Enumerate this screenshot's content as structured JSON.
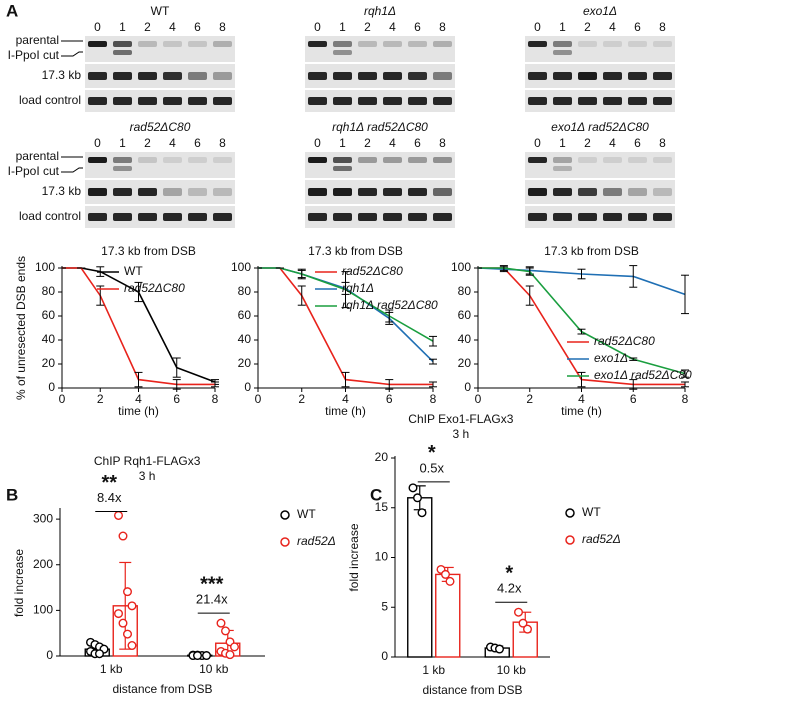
{
  "panel_labels": [
    "A",
    "B",
    "C"
  ],
  "gels": [
    {
      "title": "WT",
      "lanes": [
        "0",
        "1",
        "2",
        "4",
        "6",
        "8"
      ],
      "row_labels": [
        "parental",
        "I-PpoI cut",
        "17.3 kb",
        "load control"
      ]
    },
    {
      "title": "rqh1Δ",
      "lanes": [
        "0",
        "1",
        "2",
        "4",
        "6",
        "8"
      ]
    },
    {
      "title": "exo1Δ",
      "lanes": [
        "0",
        "1",
        "2",
        "4",
        "6",
        "8"
      ]
    },
    {
      "title": "rad52ΔC80",
      "lanes": [
        "0",
        "1",
        "2",
        "4",
        "6",
        "8"
      ],
      "row_labels": [
        "parental",
        "I-PpoI cut",
        "17.3 kb",
        "load control"
      ]
    },
    {
      "title": "rqh1Δ rad52ΔC80",
      "lanes": [
        "0",
        "1",
        "2",
        "4",
        "6",
        "8"
      ]
    },
    {
      "title": "exo1Δ rad52ΔC80",
      "lanes": [
        "0",
        "1",
        "2",
        "4",
        "6",
        "8"
      ]
    }
  ],
  "chart_data": [
    {
      "type": "line",
      "title": "17.3 kb from DSB",
      "x_label": "time (h)",
      "y_label": "% of unresected DSB ends",
      "x": [
        0,
        1,
        2,
        4,
        6,
        8
      ],
      "xlim": [
        0,
        8
      ],
      "xticks": [
        0,
        2,
        4,
        6,
        8
      ],
      "ylim": [
        0,
        100
      ],
      "yticks": [
        0,
        20,
        40,
        60,
        80,
        100
      ],
      "legend": "upper right",
      "series": [
        {
          "name": "WT",
          "color": "#000000",
          "values": [
            100,
            100,
            97,
            80,
            17,
            5
          ],
          "errors": [
            0,
            0,
            4,
            8,
            8,
            2
          ]
        },
        {
          "name": "rad52ΔC80",
          "color": "#e8231c",
          "values": [
            100,
            100,
            77,
            7,
            3,
            3
          ],
          "errors": [
            0,
            0,
            8,
            6,
            4,
            2
          ]
        }
      ]
    },
    {
      "type": "line",
      "title": "17.3 kb from DSB",
      "x_label": "time (h)",
      "x": [
        0,
        1,
        2,
        4,
        6,
        8
      ],
      "xlim": [
        0,
        8
      ],
      "xticks": [
        0,
        2,
        4,
        6,
        8
      ],
      "ylim": [
        0,
        100
      ],
      "yticks": [
        0,
        20,
        40,
        60,
        80,
        100
      ],
      "legend": "upper right",
      "series": [
        {
          "name": "rad52ΔC80",
          "color": "#e8231c",
          "values": [
            100,
            100,
            77,
            7,
            3,
            3
          ],
          "errors": [
            0,
            0,
            8,
            6,
            4,
            2
          ]
        },
        {
          "name": "rqh1Δ",
          "color": "#1f6fb4",
          "values": [
            100,
            100,
            95,
            83,
            58,
            22
          ],
          "errors": [
            0,
            0,
            3,
            5,
            5,
            2
          ]
        },
        {
          "name": "rqh1Δ rad52ΔC80",
          "color": "#1a9e3f",
          "values": [
            100,
            100,
            95,
            82,
            60,
            39
          ],
          "errors": [
            0,
            0,
            4,
            15,
            5,
            4
          ]
        }
      ]
    },
    {
      "type": "line",
      "title": "17.3 kb from DSB",
      "x_label": "time (h)",
      "x": [
        0,
        1,
        2,
        4,
        6,
        8
      ],
      "xlim": [
        0,
        8
      ],
      "xticks": [
        0,
        2,
        4,
        6,
        8
      ],
      "ylim": [
        0,
        100
      ],
      "yticks": [
        0,
        20,
        40,
        60,
        80,
        100
      ],
      "legend": "lower right",
      "series": [
        {
          "name": "rad52ΔC80",
          "color": "#e8231c",
          "values": [
            100,
            100,
            77,
            7,
            3,
            3
          ],
          "errors": [
            0,
            0,
            8,
            6,
            4,
            2
          ]
        },
        {
          "name": "exo1Δ",
          "color": "#1f6fb4",
          "values": [
            100,
            99,
            98,
            95,
            93,
            78
          ],
          "errors": [
            0,
            2,
            3,
            4,
            9,
            16
          ]
        },
        {
          "name": "exo1Δ rad52ΔC80",
          "color": "#1a9e3f",
          "values": [
            100,
            100,
            97,
            47,
            24,
            12
          ],
          "errors": [
            0,
            2,
            3,
            2,
            1,
            3
          ]
        }
      ]
    },
    {
      "type": "bar",
      "title": "ChIP Rqh1-FLAGx3",
      "subtitle": "3 h",
      "x_label": "distance from DSB",
      "y_label": "fold increase",
      "categories": [
        "1 kb",
        "10 kb"
      ],
      "ylim": [
        0,
        320
      ],
      "yticks": [
        0,
        100,
        200,
        300
      ],
      "series": [
        {
          "name": "WT",
          "color": "#000000",
          "values": [
            15,
            1.5
          ],
          "errors": [
            10,
            1
          ],
          "points": [
            [
              30,
              25,
              20,
              15,
              10,
              5,
              5
            ],
            [
              2,
              2,
              1,
              1,
              1,
              1
            ]
          ]
        },
        {
          "name": "rad52Δ",
          "color": "#e8231c",
          "values": [
            110,
            28
          ],
          "errors": [
            95,
            28
          ],
          "points": [
            [
              308,
              263,
              141,
              110,
              93,
              72,
              48,
              23
            ],
            [
              72,
              55,
              31,
              20,
              10,
              6,
              3
            ]
          ]
        }
      ],
      "annotations": [
        {
          "stars": "**",
          "label": "8.4x"
        },
        {
          "stars": "***",
          "label": "21.4x"
        }
      ]
    },
    {
      "type": "bar",
      "title": "ChIP Exo1-FLAGx3",
      "subtitle": "3 h",
      "x_label": "distance from DSB",
      "y_label": "fold increase",
      "categories": [
        "1 kb",
        "10 kb"
      ],
      "ylim": [
        0,
        20
      ],
      "yticks": [
        0,
        5,
        10,
        15,
        20
      ],
      "series": [
        {
          "name": "WT",
          "color": "#000000",
          "values": [
            16,
            0.9
          ],
          "errors": [
            1.2,
            0.2
          ],
          "points": [
            [
              17,
              16,
              14.5
            ],
            [
              1,
              0.9,
              0.8
            ]
          ]
        },
        {
          "name": "rad52Δ",
          "color": "#e8231c",
          "values": [
            8.3,
            3.5
          ],
          "errors": [
            0.7,
            1
          ],
          "points": [
            [
              8.8,
              8.3,
              7.6
            ],
            [
              4.5,
              3.4,
              2.8
            ]
          ]
        }
      ],
      "annotations": [
        {
          "stars": "*",
          "label": "0.5x"
        },
        {
          "stars": "*",
          "label": "4.2x"
        }
      ]
    }
  ]
}
